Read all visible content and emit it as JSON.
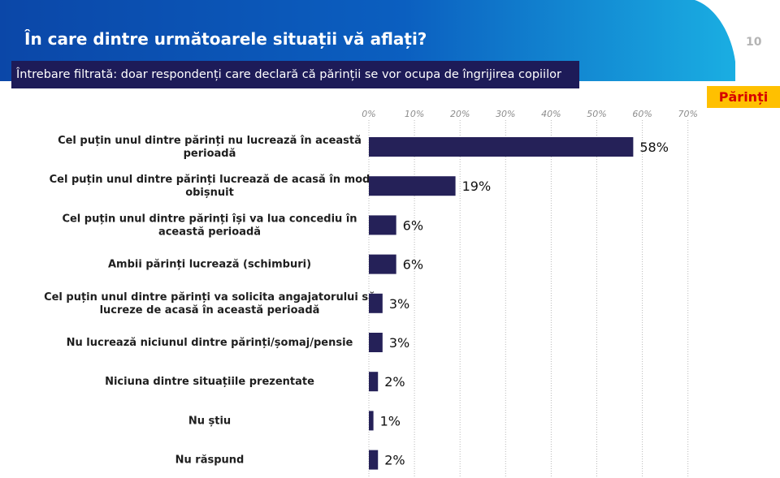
{
  "header": {
    "title": "În care dintre următoarele situații vă aflați?",
    "filter_note": "Întrebare filtrată: doar respondenți care declară că părinții se vor ocupa de îngrijirea copiilor",
    "page_number": "10",
    "segment": "Părinți"
  },
  "colors": {
    "bar": "#252158",
    "header_blue": "#0b4fb0",
    "header_cyan": "#19a7e0",
    "badge_bg": "#ffc000",
    "badge_text": "#d60000"
  },
  "chart_data": {
    "type": "bar",
    "orientation": "horizontal",
    "title": "",
    "xlabel": "",
    "ylabel": "",
    "xlim": [
      0,
      70
    ],
    "ticks": [
      "0%",
      "10%",
      "20%",
      "30%",
      "40%",
      "50%",
      "60%",
      "70%"
    ],
    "grid": true,
    "categories": [
      [
        "Cel puțin unul dintre părinți nu lucrează în această",
        "perioadă"
      ],
      [
        "Cel puțin unul dintre părinți lucrează de acasă în mod",
        "obișnuit"
      ],
      [
        "Cel puțin unul dintre părinți își va lua concediu în",
        "această perioadă"
      ],
      [
        "Ambii părinți lucrează (schimburi)"
      ],
      [
        "Cel puțin unul dintre părinți va solicita angajatorului să",
        "lucreze de acasă în această perioadă"
      ],
      [
        "Nu lucrează niciunul dintre părinți/șomaj/pensie"
      ],
      [
        "Niciuna dintre situațiile prezentate"
      ],
      [
        "Nu știu"
      ],
      [
        "Nu răspund"
      ]
    ],
    "values": [
      58,
      19,
      6,
      6,
      3,
      3,
      2,
      1,
      2
    ],
    "value_labels": [
      "58%",
      "19%",
      "6%",
      "6%",
      "3%",
      "3%",
      "2%",
      "1%",
      "2%"
    ]
  }
}
